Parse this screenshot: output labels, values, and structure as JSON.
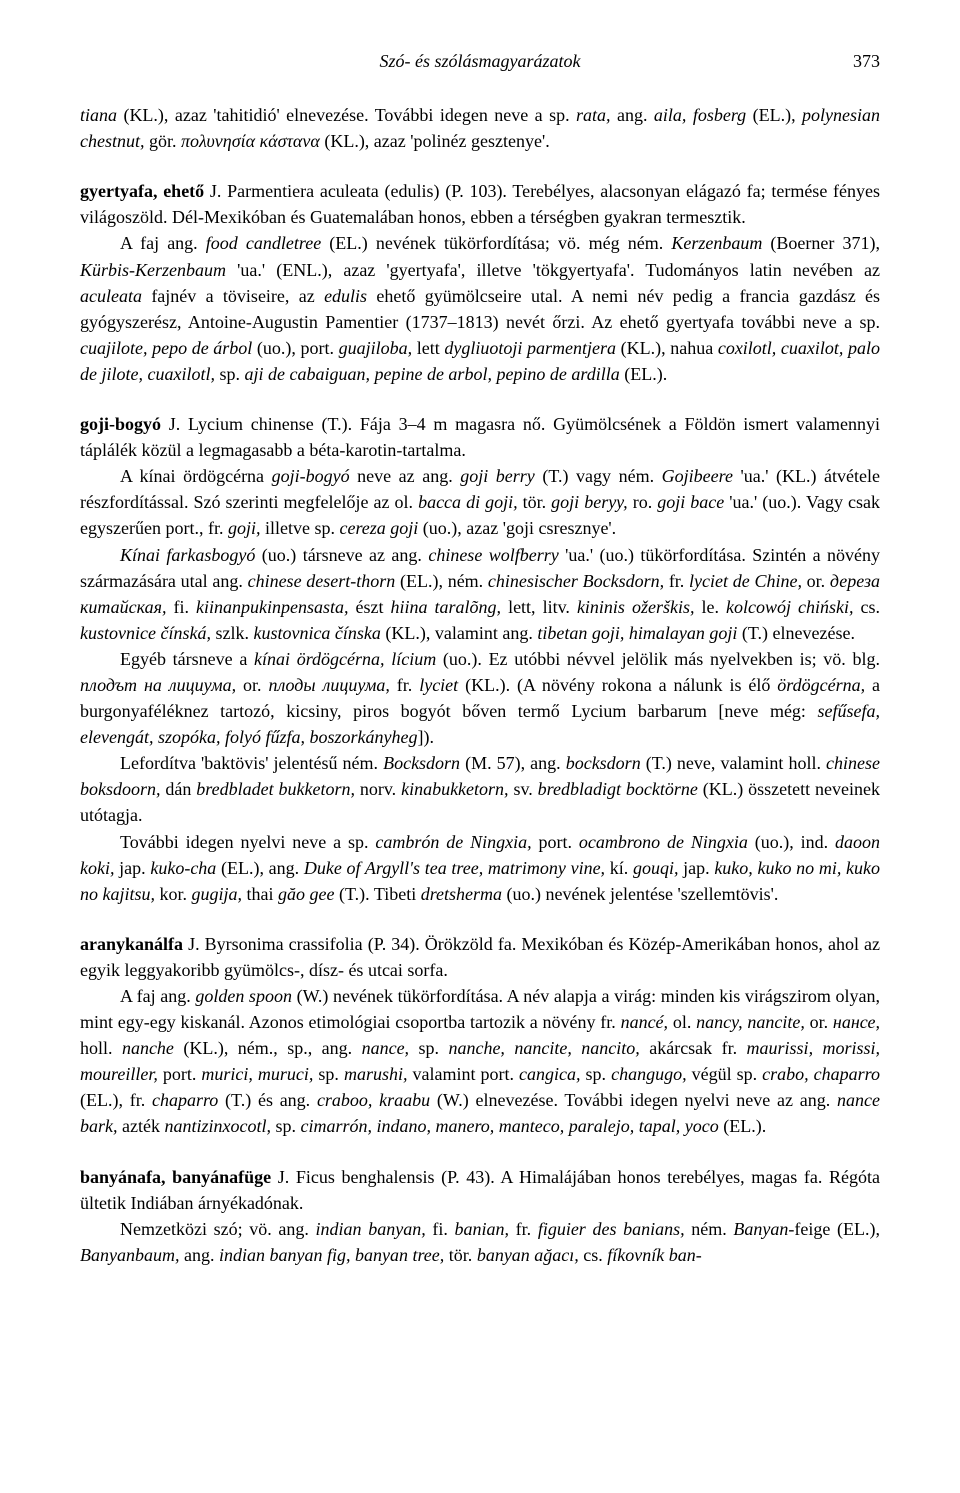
{
  "header": {
    "title": "Szó- és szólásmagyarázatok",
    "page": "373"
  },
  "p1": {
    "t1": "tiana",
    "t2": " (KL.), azaz 'tahitidió' elnevezése. További idegen neve a sp. ",
    "t3": "rata,",
    "t4": " ang. ",
    "t5": "aila, fosberg",
    "t6": " (EL.), ",
    "t7": "polynesian chestnut,",
    "t8": " gör. ",
    "t9": "πολυνησία κάστανα",
    "t10": " (KL.), azaz 'polinéz gesztenye'."
  },
  "p2": {
    "t1": "gyertyafa, ehető",
    "t2": " J. Parmentiera aculeata (edulis) (P. 103). Terebélyes, alacsonyan elágazó fa; termése fényes világoszöld. Dél-Mexikóban és Guatemalában honos, ebben a térségben gyakran termesztik."
  },
  "p3": {
    "t1": "A faj ang. ",
    "t2": "food candletree",
    "t3": " (EL.) nevének tükörfordítása; vö. még ném. ",
    "t4": "Kerzenbaum",
    "t5": " (Boerner 371), ",
    "t6": "Kürbis-Kerzenbaum",
    "t7": " 'ua.' (ENL.), azaz 'gyertyafa', illetve 'tökgyertyafa'. Tudományos latin nevében az ",
    "t8": "aculeata",
    "t9": " fajnév a töviseire, az ",
    "t10": "edulis",
    "t11": " ehető gyümölcseire utal. A nemi név pedig a francia gazdász és gyógyszerész, Antoine-Augustin Pamentier (1737–1813) nevét őrzi. Az ehető gyertyafa további neve a sp. ",
    "t12": "cuajilote, pepo de árbol",
    "t13": " (uo.), port. ",
    "t14": "guajiloba,",
    "t15": " lett ",
    "t16": "dygliuotoji parmentjera",
    "t17": " (KL.), nahua ",
    "t18": "coxilotl, cuaxilot, palo de jilote, cuaxilotl,",
    "t19": " sp. ",
    "t20": "aji de cabaiguan, pepine de arbol, pepino de ardilla",
    "t21": " (EL.)."
  },
  "p4": {
    "t1": "goji-bogyó",
    "t2": " J. Lycium chinense (T.). Fája 3–4 m magasra nő. Gyümölcsének a Földön ismert valamennyi táplálék közül a legmagasabb a béta-karotin-tartalma."
  },
  "p5": {
    "t1": "A kínai ördögcérna ",
    "t2": "goji-bogyó",
    "t3": " neve az ang. ",
    "t4": "goji berry",
    "t5": " (T.) vagy ném. ",
    "t6": "Gojibeere",
    "t7": " 'ua.' (KL.) átvétele részfordítással. Szó szerinti megfelelője az ol. ",
    "t8": "bacca di goji,",
    "t9": " tör. ",
    "t10": "goji beryy,",
    "t11": " ro. ",
    "t12": "goji bace",
    "t13": " 'ua.' (uo.). Vagy csak egyszerűen port., fr. ",
    "t14": "goji,",
    "t15": " illetve sp. ",
    "t16": "cereza goji",
    "t17": " (uo.), azaz 'goji csresznye'."
  },
  "p6": {
    "t1": "Kínai farkasbogyó",
    "t2": " (uo.) társneve az ang. ",
    "t3": "chinese wolfberry",
    "t4": " 'ua.' (uo.) tükörfordítása. Szintén a növény származására utal ang. ",
    "t5": "chinese desert-thorn",
    "t6": " (EL.), ném. ",
    "t7": "chinesischer Bocksdorn,",
    "t8": " fr. ",
    "t9": "lyciet de Chine,",
    "t10": " or. ",
    "t11": "дереза китайская,",
    "t12": " fi. ",
    "t13": "kiinanpukinpensasta,",
    "t14": " észt ",
    "t15": "hiina taralõng,",
    "t16": " lett, litv. ",
    "t17": "kininis ožerškis,",
    "t18": " le. ",
    "t19": "kolcowój chiński,",
    "t20": " cs. ",
    "t21": "kustovnice čínská,",
    "t22": " szlk. ",
    "t23": "kustovnica čínska",
    "t24": " (KL.), valamint ang. ",
    "t25": "tibetan goji, himalayan goji",
    "t26": " (T.) elnevezése."
  },
  "p7": {
    "t1": "Egyéb társneve a ",
    "t2": "kínai ördögcérna, lícium",
    "t3": " (uo.). Ez utóbbi névvel jelölik más nyelvekben is; vö. blg. ",
    "t4": "плодът на лициума,",
    "t5": " or. ",
    "t6": "плоды лициума,",
    "t7": " fr. ",
    "t8": "lyciet",
    "t9": " (KL.). (A növény rokona a nálunk is élő ",
    "t10": "ördögcérna,",
    "t11": " a burgonyaféléknez tartozó, kicsiny, piros bogyót bőven termő Lycium barbarum [neve még: ",
    "t12": "sefűsefa, elevengát, szopóka, folyó fűzfa, boszorkányheg",
    "t13": "])."
  },
  "p8": {
    "t1": "Lefordítva 'baktövis' jelentésű ném. ",
    "t2": "Bocksdorn",
    "t3": " (M. 57), ang. ",
    "t4": "bocksdorn",
    "t5": " (T.) neve, valamint holl. ",
    "t6": "chinese boksdoorn,",
    "t7": " dán ",
    "t8": "bredbladet bukketorn,",
    "t9": " norv. ",
    "t10": "kinabukketorn,",
    "t11": " sv. ",
    "t12": "bredbladigt bocktörne",
    "t13": " (KL.) összetett neveinek utótagja."
  },
  "p9": {
    "t1": "További idegen nyelvi neve a sp. ",
    "t2": "cambrón de Ningxia,",
    "t3": " port. ",
    "t4": "ocambrono de Ningxia",
    "t5": " (uo.), ind. ",
    "t6": "daoon koki,",
    "t7": " jap. ",
    "t8": "kuko-cha",
    "t9": " (EL.), ang. ",
    "t10": "Duke of Argyll's tea tree, matrimony vine,",
    "t11": " kí. ",
    "t12": "gouqi,",
    "t13": " jap. ",
    "t14": "kuko, kuko no mi, kuko no kajitsu,",
    "t15": " kor. ",
    "t16": "gugija,",
    "t17": " thai ",
    "t18": "găo gee",
    "t19": " (T.). Tibeti ",
    "t20": "dretsherma",
    "t21": " (uo.) nevének jelentése 'szellemtövis'."
  },
  "p10": {
    "t1": "aranykanálfa",
    "t2": " J. Byrsonima crassifolia (P. 34). Örökzöld fa. Mexikóban és Közép-Amerikában honos, ahol az egyik leggyakoribb gyümölcs-, dísz- és utcai sorfa."
  },
  "p11": {
    "t1": "A faj ang. ",
    "t2": "golden spoon",
    "t3": " (W.) nevének tükörfordítása. A név alapja a virág: minden kis virágszirom olyan, mint egy-egy kiskanál. Azonos etimológiai csoportba tartozik a növény fr. ",
    "t4": "nancé,",
    "t5": " ol. ",
    "t6": "nancy, nancite,",
    "t7": " or. ",
    "t8": "нансе,",
    "t9": " holl. ",
    "t10": "nanche",
    "t11": " (KL.), ném., sp., ang. ",
    "t12": "nance,",
    "t13": " sp. ",
    "t14": "nanche, nancite, nancito,",
    "t15": " akárcsak fr. ",
    "t16": "maurissi, morissi, moureiller,",
    "t17": " port. ",
    "t18": "murici, muruci,",
    "t19": " sp. ",
    "t20": "marushi,",
    "t21": " valamint port. ",
    "t22": "cangica,",
    "t23": " sp. ",
    "t24": "changugo,",
    "t25": " végül sp. ",
    "t26": "crabo, chaparro",
    "t27": " (EL.), fr. ",
    "t28": "chaparro",
    "t29": " (T.) és ang. ",
    "t30": "craboo, kraabu",
    "t31": " (W.) elnevezése. További idegen nyelvi neve az ang. ",
    "t32": "nance bark,",
    "t33": " azték ",
    "t34": "nantizinxocotl,",
    "t35": " sp. ",
    "t36": "cimarrón, indano, manero, manteco, paralejo, tapal, yoco",
    "t37": " (EL.)."
  },
  "p12": {
    "t1": "banyánafa, banyánafüge",
    "t2": " J. Ficus benghalensis (P. 43). A Himalájában honos terebélyes, magas fa. Régóta ültetik Indiában árnyékadónak."
  },
  "p13": {
    "t1": "Nemzetközi szó; vö. ang. ",
    "t2": "indian banyan,",
    "t3": " fi. ",
    "t4": "banian,",
    "t5": " fr. ",
    "t6": "figuier des banians,",
    "t7": " ném. ",
    "t8": "Banyan-",
    "t9": "feige (EL.), ",
    "t10": "Banyanbaum,",
    "t11": " ang. ",
    "t12": "indian banyan fig, banyan tree,",
    "t13": " tör. ",
    "t14": "banyan ağacı,",
    "t15": " cs. ",
    "t16": "fíkovník ban-"
  }
}
